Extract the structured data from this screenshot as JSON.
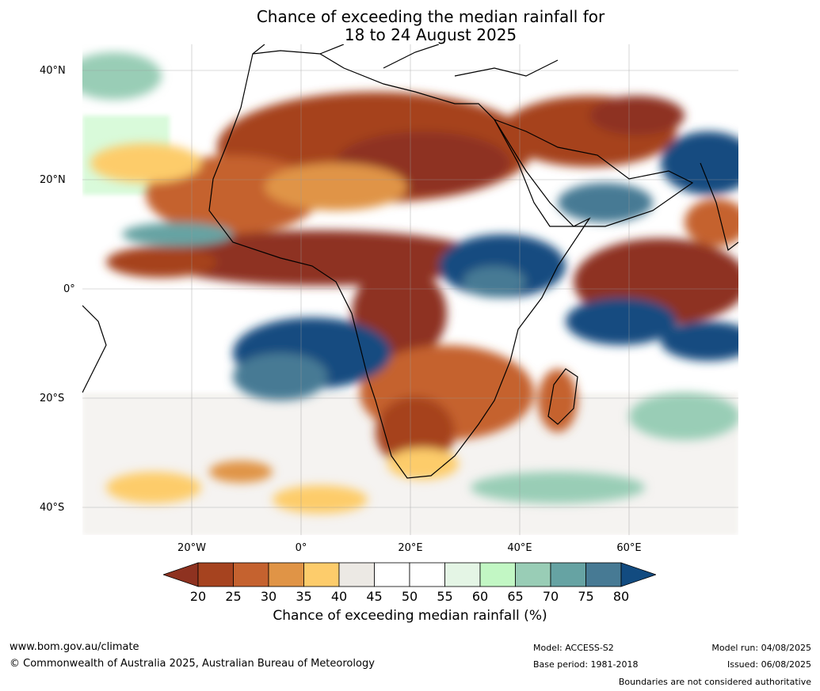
{
  "title_line1": "Chance of exceeding the median rainfall for",
  "title_line2": "18 to 24 August 2025",
  "lat_labels": [
    "40°N",
    "20°N",
    "0°",
    "20°S",
    "40°S"
  ],
  "lon_labels": [
    "20°W",
    "0°",
    "20°E",
    "40°E",
    "60°E"
  ],
  "colorbar": {
    "ticks": [
      "20",
      "25",
      "30",
      "35",
      "40",
      "45",
      "50",
      "55",
      "60",
      "65",
      "70",
      "75",
      "80"
    ],
    "colors": [
      "#8e3220",
      "#a6431f",
      "#c5622f",
      "#e09446",
      "#fdcc6b",
      "#ece9e4",
      "#ffffff",
      "#ffffff",
      "#e4f5e5",
      "#c2f7c4",
      "#99cdb6",
      "#66a3a3",
      "#477a94",
      "#124b80"
    ],
    "label": "Chance of exceeding median rainfall (%)"
  },
  "footer": {
    "website": "www.bom.gov.au/climate",
    "copyright": "© Commonwealth of Australia 2025, Australian Bureau of Meteorology",
    "model": "Model: ACCESS-S2",
    "base_period": "Base period: 1981-2018",
    "model_run": "Model run: 04/08/2025",
    "issued": "Issued: 06/08/2025",
    "disclaimer": "Boundaries are not considered authoritative"
  }
}
